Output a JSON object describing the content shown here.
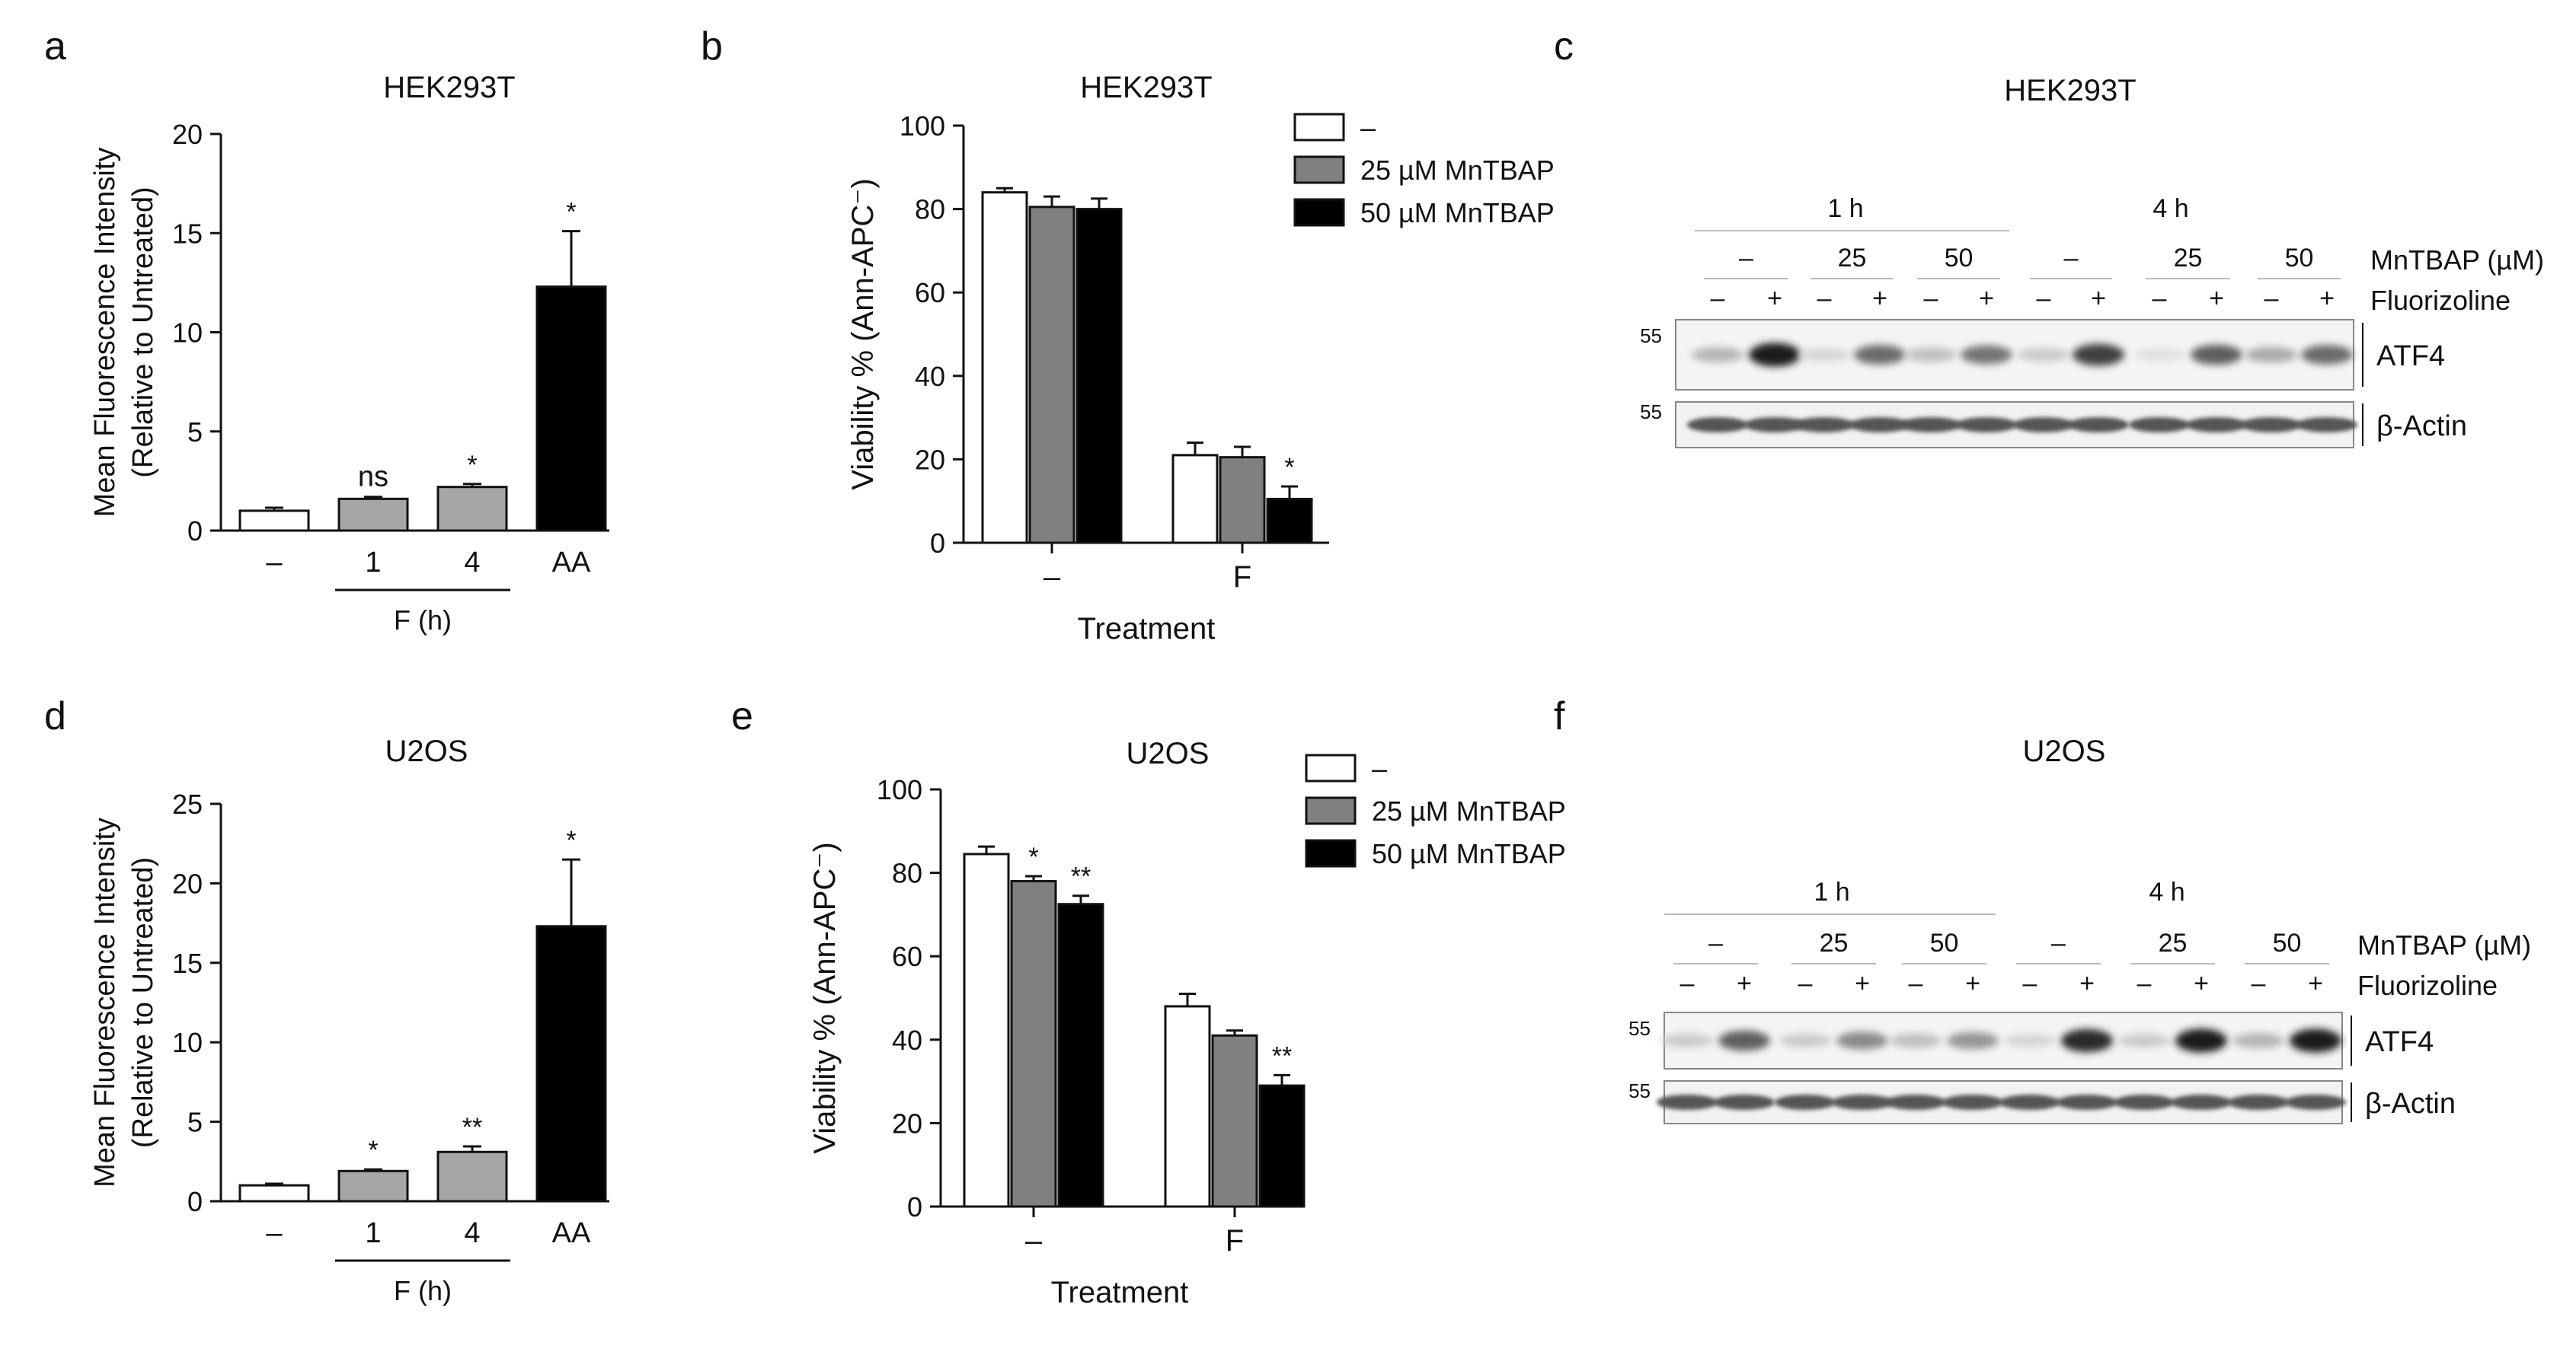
{
  "panels": {
    "a": {
      "letter": "a",
      "title": "HEK293T"
    },
    "b": {
      "letter": "b",
      "title": "HEK293T"
    },
    "c": {
      "letter": "c",
      "title": "HEK293T"
    },
    "d": {
      "letter": "d",
      "title": "U2OS"
    },
    "e": {
      "letter": "e",
      "title": "U2OS"
    },
    "f": {
      "letter": "f",
      "title": "U2OS"
    }
  },
  "chart_data": [
    {
      "id": "a",
      "type": "bar",
      "title": "HEK293T",
      "ylabel_line1": "Mean Fluorescence Intensity",
      "ylabel_line2": "(Relative to Untreated)",
      "categories": [
        "–",
        "1",
        "4",
        "AA"
      ],
      "values": [
        1.0,
        1.6,
        2.2,
        12.3
      ],
      "errors": [
        0.15,
        0.1,
        0.15,
        2.8
      ],
      "colors": [
        "#ffffff",
        "#a6a6a6",
        "#a6a6a6",
        "#000000"
      ],
      "annotations": [
        "",
        "ns",
        "*",
        "*"
      ],
      "group_label": "F (h)",
      "yticks": [
        0,
        5,
        10,
        15,
        20
      ],
      "ylim": [
        0,
        20
      ]
    },
    {
      "id": "b",
      "type": "bar",
      "title": "HEK293T",
      "ylabel": "Viability % (Ann-APC⁻)",
      "xlabel": "Treatment",
      "categories": [
        "–",
        "F"
      ],
      "series": [
        {
          "name": "–",
          "color": "#ffffff",
          "values": [
            84,
            21
          ],
          "errors": [
            1,
            3
          ],
          "annotations": [
            "",
            ""
          ]
        },
        {
          "name": "25 µM MnTBAP",
          "color": "#808080",
          "values": [
            80.5,
            20.5
          ],
          "errors": [
            2.5,
            2.5
          ],
          "annotations": [
            "",
            ""
          ]
        },
        {
          "name": "50 µM MnTBAP",
          "color": "#000000",
          "values": [
            80,
            10.5
          ],
          "errors": [
            2.5,
            3
          ],
          "annotations": [
            "",
            "*"
          ]
        }
      ],
      "yticks": [
        0,
        20,
        40,
        60,
        80,
        100
      ],
      "ylim": [
        0,
        100
      ]
    },
    {
      "id": "d",
      "type": "bar",
      "title": "U2OS",
      "ylabel_line1": "Mean Fluorescence Intensity",
      "ylabel_line2": "(Relative to Untreated)",
      "categories": [
        "–",
        "1",
        "4",
        "AA"
      ],
      "values": [
        1.0,
        1.9,
        3.1,
        17.3
      ],
      "errors": [
        0.1,
        0.1,
        0.35,
        4.2
      ],
      "colors": [
        "#ffffff",
        "#a6a6a6",
        "#a6a6a6",
        "#000000"
      ],
      "annotations": [
        "",
        "*",
        "**",
        "*"
      ],
      "group_label": "F (h)",
      "yticks": [
        0,
        5,
        10,
        15,
        20,
        25
      ],
      "ylim": [
        0,
        25
      ]
    },
    {
      "id": "e",
      "type": "bar",
      "title": "U2OS",
      "ylabel": "Viability % (Ann-APC⁻)",
      "xlabel": "Treatment",
      "categories": [
        "–",
        "F"
      ],
      "series": [
        {
          "name": "–",
          "color": "#ffffff",
          "values": [
            84.5,
            48
          ],
          "errors": [
            1.8,
            3
          ],
          "annotations": [
            "",
            ""
          ]
        },
        {
          "name": "25 µM MnTBAP",
          "color": "#808080",
          "values": [
            78,
            41
          ],
          "errors": [
            1.2,
            1.2
          ],
          "annotations": [
            "*",
            ""
          ]
        },
        {
          "name": "50 µM MnTBAP",
          "color": "#000000",
          "values": [
            72.5,
            29
          ],
          "errors": [
            2,
            2.5
          ],
          "annotations": [
            "**",
            "**"
          ]
        }
      ],
      "yticks": [
        0,
        20,
        40,
        60,
        80,
        100
      ],
      "ylim": [
        0,
        100
      ]
    }
  ],
  "blots": [
    {
      "id": "c",
      "time_labels": [
        "1 h",
        "4 h"
      ],
      "dose_labels": [
        "–",
        "25",
        "50",
        "–",
        "25",
        "50"
      ],
      "pm_labels": [
        "–",
        "+",
        "–",
        "+",
        "–",
        "+",
        "–",
        "+",
        "–",
        "+",
        "–",
        "+"
      ],
      "row1_label": "MnTBAP (µM)",
      "row2_label": "Fluorizoline",
      "marker_top": "55",
      "marker_bottom": "55",
      "band_labels": [
        "ATF4",
        "β-Actin"
      ],
      "atf4_intensity": [
        0.25,
        0.95,
        0.1,
        0.6,
        0.2,
        0.55,
        0.15,
        0.8,
        0.05,
        0.65,
        0.3,
        0.6
      ]
    },
    {
      "id": "f",
      "time_labels": [
        "1 h",
        "4 h"
      ],
      "dose_labels": [
        "–",
        "25",
        "50",
        "–",
        "25",
        "50"
      ],
      "pm_labels": [
        "–",
        "+",
        "–",
        "+",
        "–",
        "+",
        "–",
        "+",
        "–",
        "+",
        "–",
        "+"
      ],
      "row1_label": "MnTBAP (µM)",
      "row2_label": "Fluorizoline",
      "marker_top": "55",
      "marker_bottom": "55",
      "band_labels": [
        "ATF4",
        "β-Actin"
      ],
      "atf4_intensity": [
        0.15,
        0.65,
        0.15,
        0.45,
        0.2,
        0.4,
        0.1,
        0.9,
        0.15,
        0.95,
        0.25,
        0.95
      ]
    }
  ]
}
